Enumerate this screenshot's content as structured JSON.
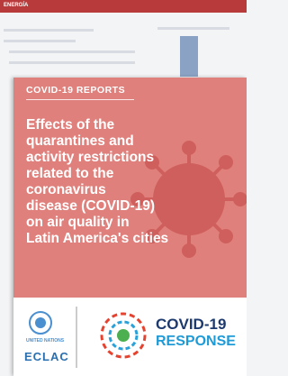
{
  "header": {
    "section": "ENERGÍA"
  },
  "cover": {
    "series": "COVID-19 REPORTS",
    "title_lines": [
      "Effects of the",
      "quarantines and",
      "activity restrictions",
      "related to the",
      "coronavirus",
      "disease (COVID-19)",
      "on air quality in",
      "Latin America's cities"
    ]
  },
  "logos": {
    "un": "UNITED NATIONS",
    "eclac": "ECLAC",
    "covid": "COVID-19",
    "response": "RESPONSE"
  }
}
